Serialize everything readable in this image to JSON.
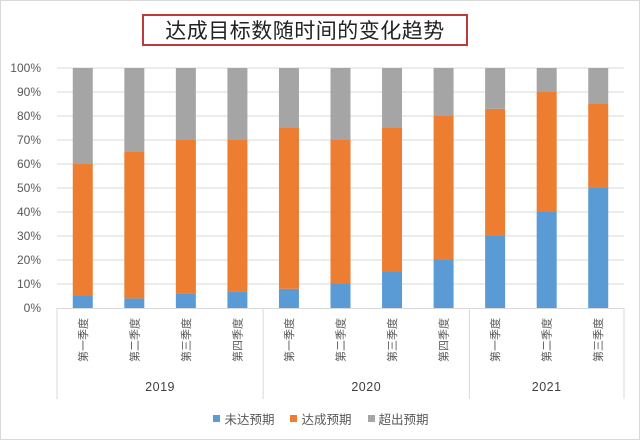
{
  "chart_data": {
    "type": "bar",
    "stacked": "percent",
    "title": "达成目标数随时间的变化趋势",
    "xlabel": "",
    "ylabel": "",
    "ylim": [
      0,
      100
    ],
    "yticks": [
      "0%",
      "10%",
      "20%",
      "30%",
      "40%",
      "50%",
      "60%",
      "70%",
      "80%",
      "90%",
      "100%"
    ],
    "grid": true,
    "legend_position": "bottom",
    "groups": [
      {
        "label": "2019",
        "categories": [
          "第一季度",
          "第二季度",
          "第三季度",
          "第四季度"
        ]
      },
      {
        "label": "2020",
        "categories": [
          "第一季度",
          "第二季度",
          "第三季度",
          "第四季度"
        ]
      },
      {
        "label": "2021",
        "categories": [
          "第一季度",
          "第二季度",
          "第三季度"
        ]
      }
    ],
    "categories": [
      "2019 第一季度",
      "2019 第二季度",
      "2019 第三季度",
      "2019 第四季度",
      "2020 第一季度",
      "2020 第二季度",
      "2020 第三季度",
      "2020 第四季度",
      "2021 第一季度",
      "2021 第二季度",
      "2021 第三季度"
    ],
    "series": [
      {
        "name": "未达预期",
        "color": "#5b9bd5",
        "values": [
          5,
          4,
          6,
          7,
          8,
          10,
          15,
          20,
          30,
          40,
          50
        ]
      },
      {
        "name": "达成预期",
        "color": "#ed7d31",
        "values": [
          55,
          61,
          64,
          63,
          67,
          60,
          60,
          60,
          53,
          50,
          35
        ]
      },
      {
        "name": "超出预期",
        "color": "#a5a5a5",
        "values": [
          40,
          35,
          30,
          30,
          25,
          30,
          25,
          20,
          17,
          10,
          15
        ]
      }
    ]
  },
  "colors": {
    "title_border": "#c0393b",
    "gridline": "#d9d9d9",
    "axis_text": "#595959"
  }
}
